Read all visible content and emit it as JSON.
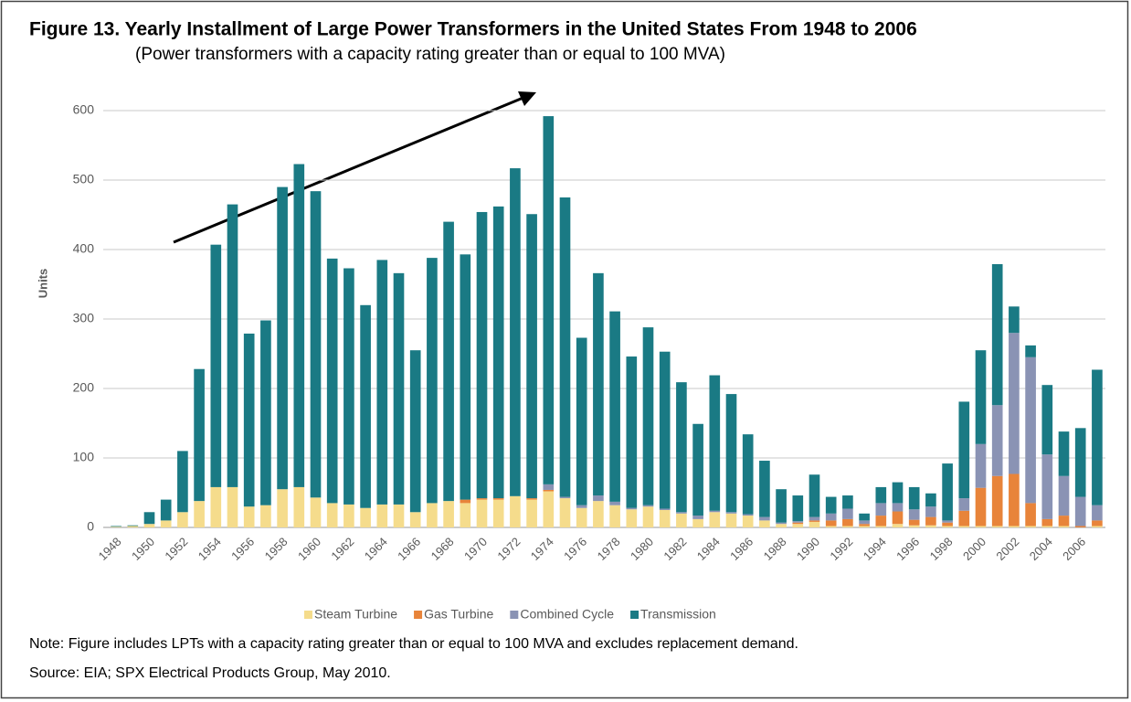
{
  "chart_data": {
    "type": "stacked_bar",
    "title": "Figure 13. Yearly Installment of Large Power Transformers in the United States From 1948 to 2006",
    "subtitle": "(Power transformers with a capacity rating greater than or equal to 100 MVA)",
    "y_label": "Units",
    "note": "Note: Figure includes LPTs with a capacity rating greater than or equal to 100 MVA and excludes replacement demand.",
    "source": "Source: EIA; SPX Electrical Products Group, May 2010.",
    "categories": [
      "1948",
      null,
      "1950",
      null,
      "1952",
      null,
      "1954",
      null,
      "1956",
      null,
      "1958",
      null,
      "1960",
      null,
      "1962",
      null,
      "1964",
      null,
      "1966",
      null,
      "1968",
      null,
      "1970",
      null,
      "1972",
      null,
      "1974",
      null,
      "1976",
      null,
      "1978",
      null,
      "1980",
      null,
      "1982",
      null,
      "1984",
      null,
      "1986",
      null,
      "1988",
      null,
      "1990",
      null,
      "1992",
      null,
      "1994",
      null,
      "1996",
      null,
      "1998",
      null,
      "2000",
      null,
      "2002",
      null,
      "2004",
      null,
      "2006",
      null
    ],
    "series": [
      {
        "name": "Steam Turbine",
        "color": "#f5dc8c",
        "values": [
          1,
          2,
          5,
          10,
          22,
          38,
          58,
          58,
          30,
          32,
          55,
          58,
          43,
          35,
          33,
          28,
          33,
          33,
          22,
          35,
          38,
          35,
          40,
          40,
          45,
          40,
          52,
          42,
          28,
          38,
          32,
          26,
          30,
          25,
          20,
          12,
          22,
          20,
          17,
          10,
          5,
          5,
          8,
          2,
          2,
          2,
          2,
          5,
          3,
          3,
          2,
          2,
          2,
          2,
          2,
          2,
          2,
          2,
          0,
          2
        ]
      },
      {
        "name": "Gas Turbine",
        "color": "#e8843a",
        "values": [
          0,
          0,
          0,
          0,
          0,
          0,
          0,
          0,
          0,
          0,
          0,
          0,
          0,
          0,
          0,
          0,
          0,
          0,
          0,
          0,
          0,
          5,
          2,
          2,
          0,
          2,
          2,
          0,
          0,
          0,
          0,
          0,
          0,
          0,
          0,
          0,
          0,
          0,
          0,
          0,
          0,
          2,
          2,
          8,
          10,
          3,
          15,
          18,
          8,
          12,
          5,
          22,
          55,
          72,
          75,
          33,
          10,
          15,
          2,
          8
        ]
      },
      {
        "name": "Combined Cycle",
        "color": "#8a93b4",
        "values": [
          0,
          0,
          0,
          0,
          0,
          0,
          0,
          0,
          0,
          0,
          0,
          0,
          0,
          0,
          0,
          0,
          0,
          0,
          0,
          0,
          0,
          0,
          0,
          0,
          0,
          0,
          8,
          2,
          4,
          8,
          5,
          2,
          2,
          2,
          2,
          5,
          2,
          2,
          2,
          5,
          2,
          2,
          5,
          10,
          15,
          5,
          18,
          12,
          15,
          15,
          3,
          18,
          63,
          102,
          203,
          210,
          93,
          57,
          42,
          22
        ]
      },
      {
        "name": "Transmission",
        "color": "#1a7a84",
        "values": [
          1,
          1,
          17,
          30,
          88,
          190,
          349,
          407,
          249,
          266,
          435,
          465,
          441,
          352,
          340,
          292,
          352,
          333,
          233,
          353,
          402,
          353,
          412,
          420,
          472,
          409,
          530,
          431,
          241,
          320,
          274,
          218,
          256,
          226,
          187,
          132,
          195,
          170,
          115,
          81,
          48,
          37,
          61,
          24,
          19,
          10,
          23,
          30,
          32,
          19,
          82,
          139,
          135,
          203,
          38,
          17,
          100,
          64,
          99,
          195
        ]
      }
    ],
    "ylim": [
      0,
      600
    ],
    "yticks": [
      0,
      100,
      200,
      300,
      400,
      500,
      600
    ],
    "grid": true,
    "legend": "bottom"
  }
}
